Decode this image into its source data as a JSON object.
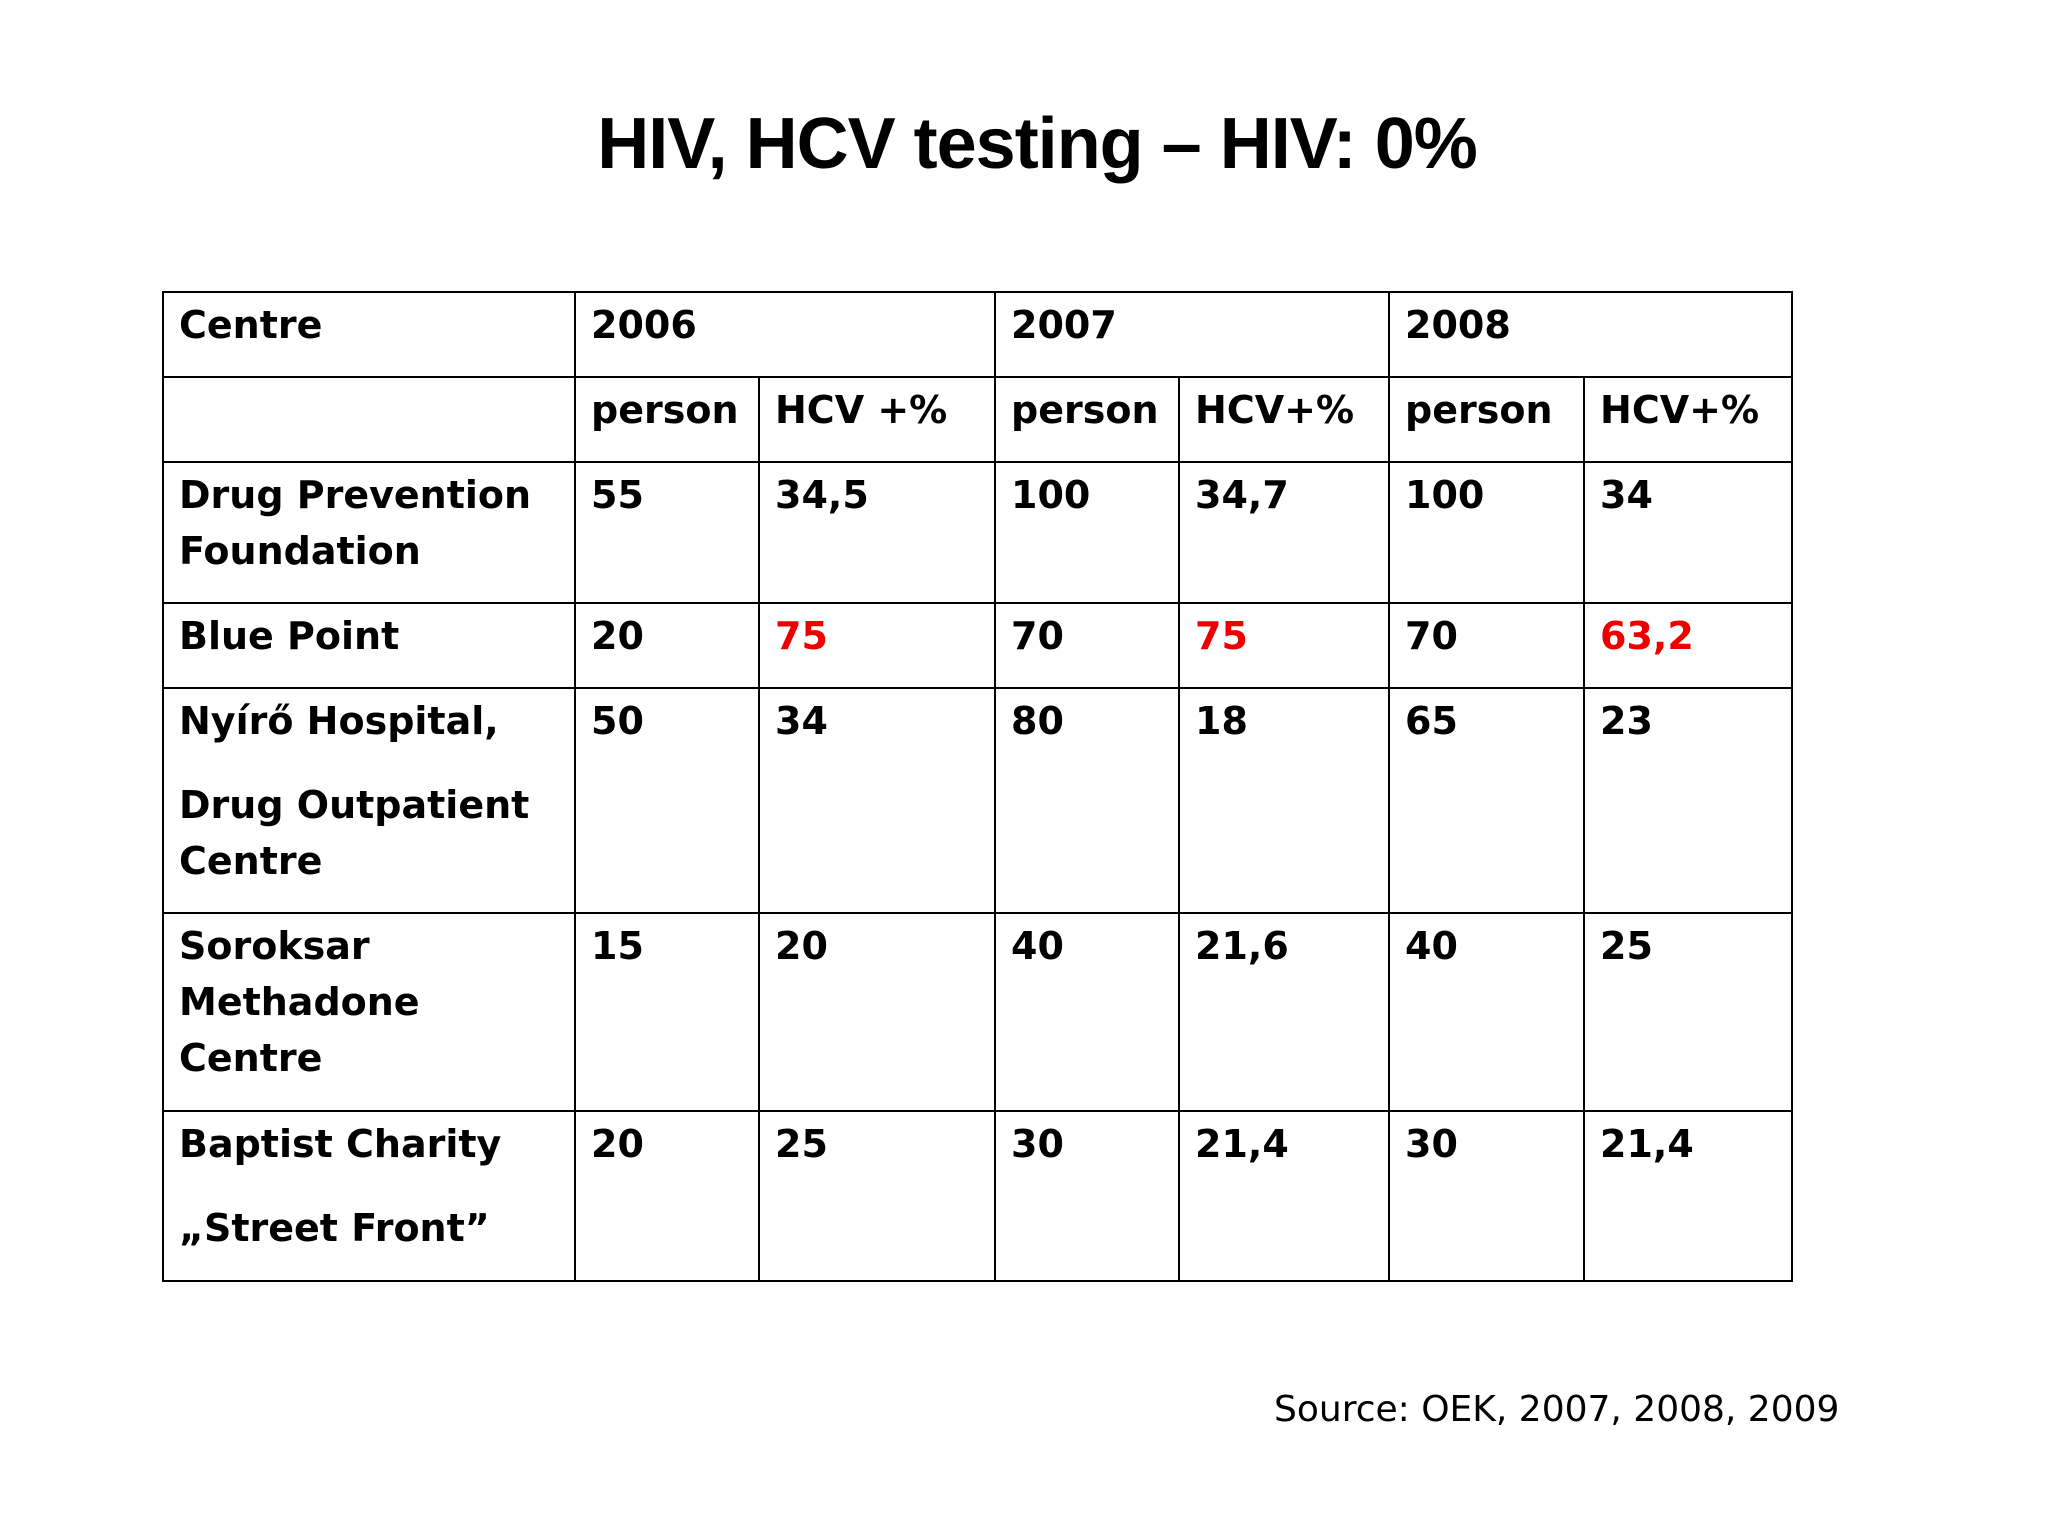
{
  "title": "HIV, HCV testing – HIV: 0%",
  "table": {
    "header": {
      "centre": "Centre",
      "years": [
        "2006",
        "2007",
        "2008"
      ]
    },
    "subheader": [
      "person",
      "HCV +%",
      "person",
      "HCV+%",
      "person",
      "HCV+%"
    ],
    "rows": [
      {
        "centre_lines": [
          "Drug Prevention",
          "Foundation"
        ],
        "values": [
          "55",
          "34,5",
          "100",
          "34,7",
          "100",
          "34"
        ]
      },
      {
        "centre_lines": [
          "Blue Point"
        ],
        "values": [
          "20",
          "75",
          "70",
          "75",
          "70",
          "63,2"
        ]
      },
      {
        "centre_lines": [
          "Nyírő Hospital,",
          "Drug Outpatient",
          "Centre"
        ],
        "values": [
          "50",
          "34",
          "80",
          "18",
          "65",
          "23"
        ]
      },
      {
        "centre_lines": [
          "Soroksar",
          "Methadone",
          "Centre"
        ],
        "values": [
          "15",
          "20",
          "40",
          "21,6",
          "40",
          "25"
        ]
      },
      {
        "centre_lines": [
          "Baptist Charity",
          "„Street Front”"
        ],
        "values": [
          "20",
          "25",
          "30",
          "21,4",
          "30",
          "21,4"
        ]
      }
    ],
    "highlight_color": "#ee0000",
    "highlighted_cells": [
      "Blue Point 2006 HCV +%",
      "Blue Point 2007 HCV+%",
      "Blue Point 2008 HCV+%"
    ]
  },
  "source": "Source: OEK, 2007, 2008, 2009"
}
